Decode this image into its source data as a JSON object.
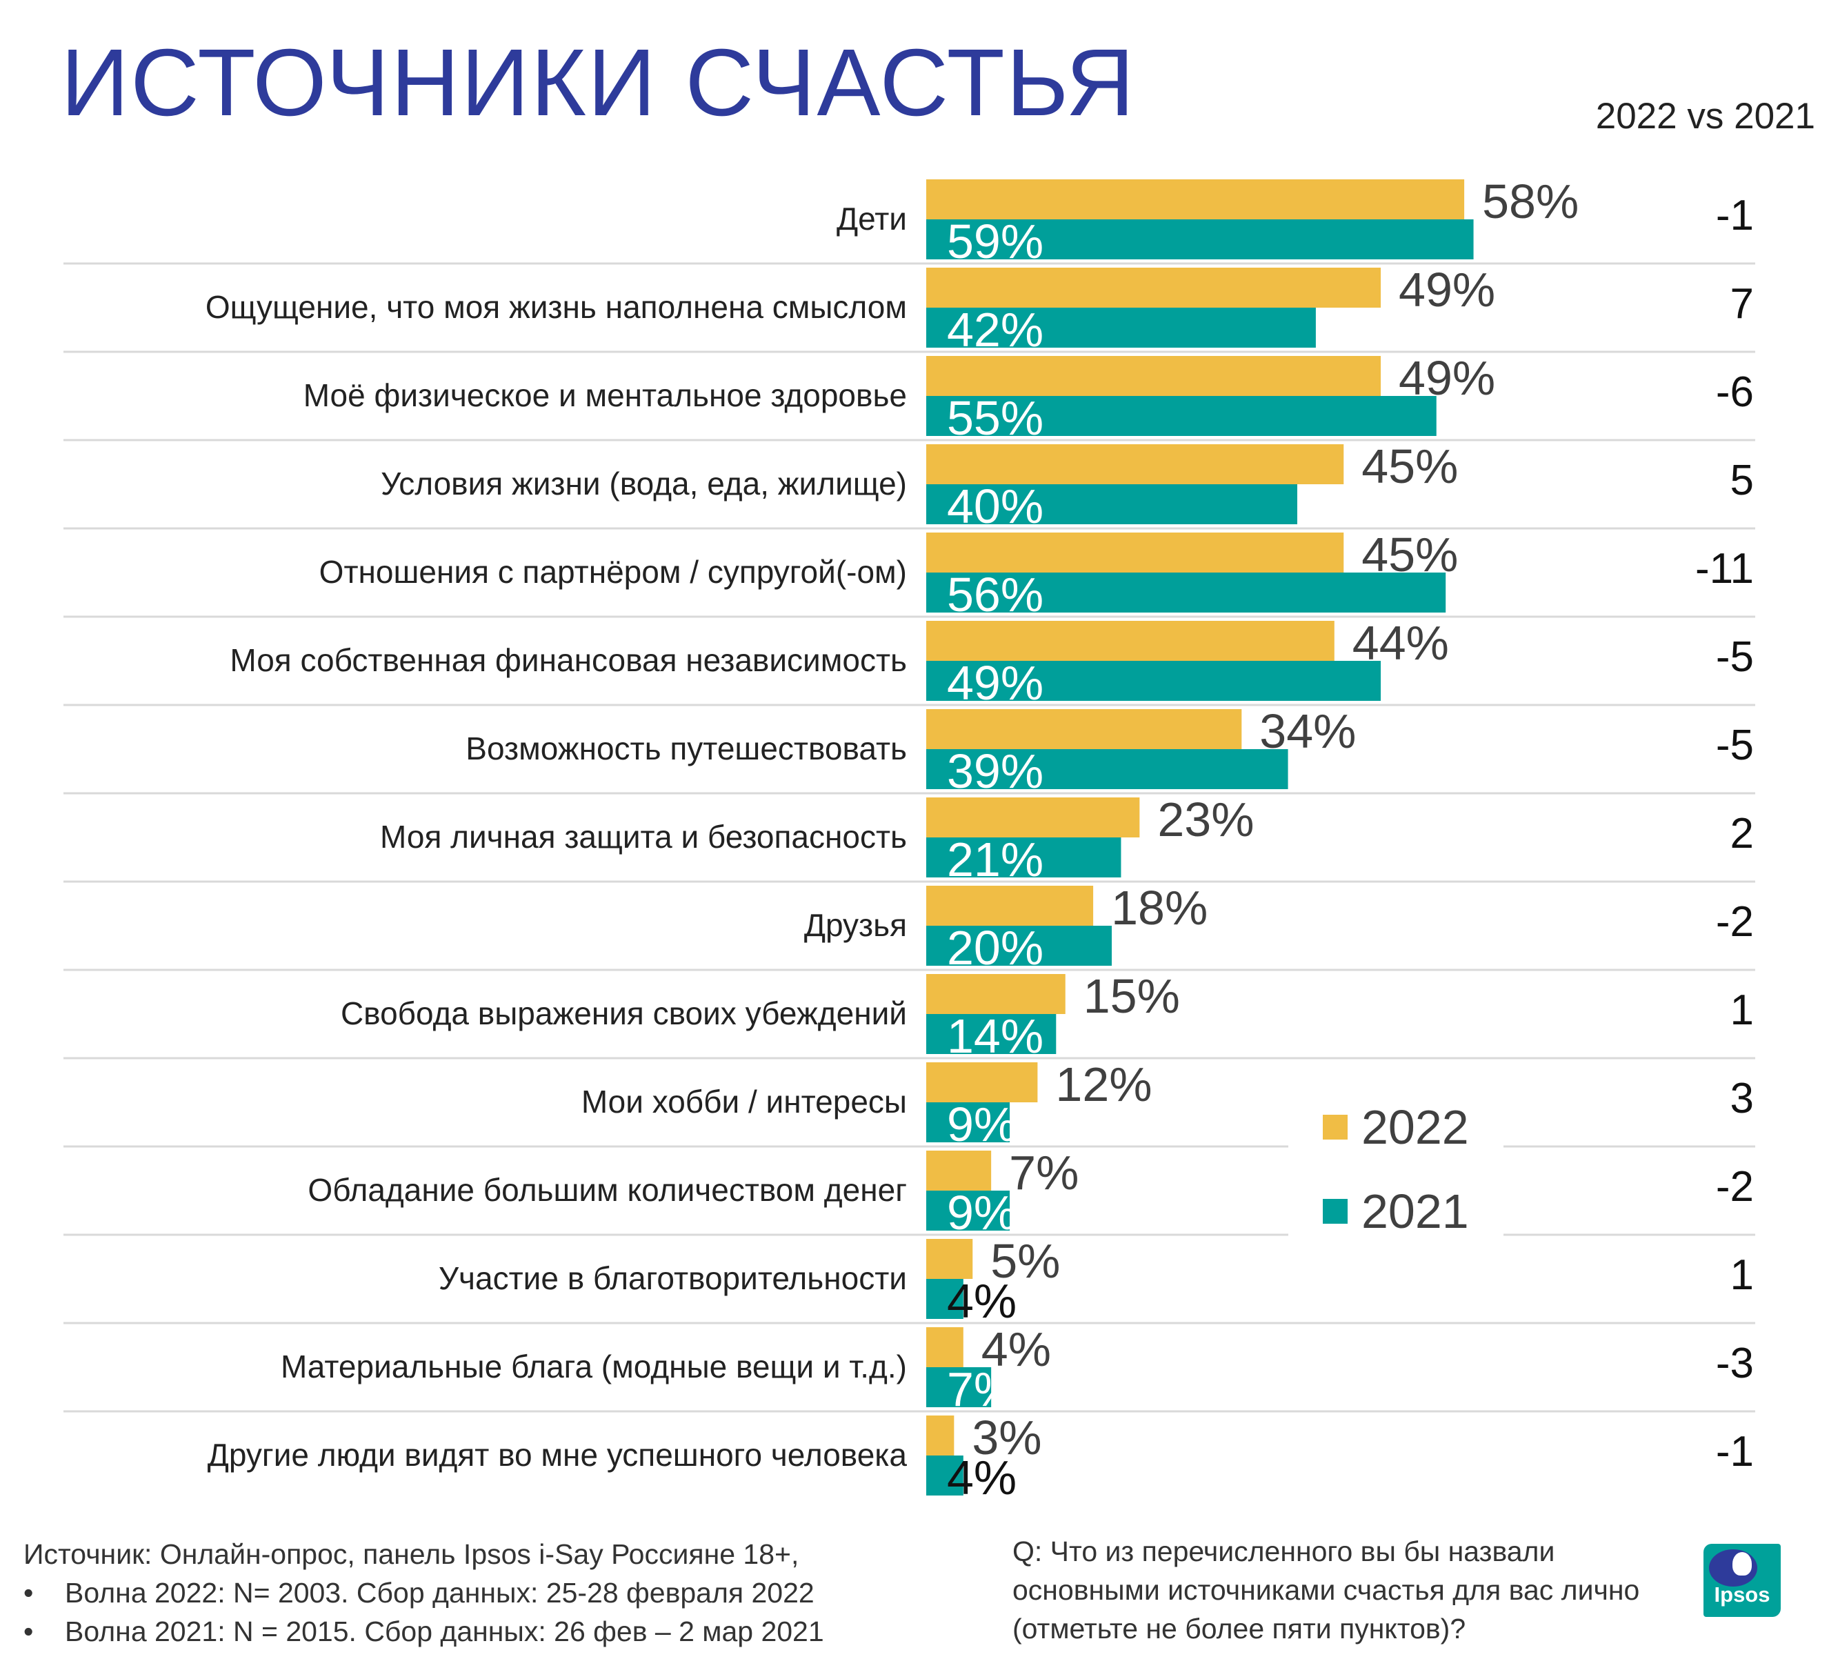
{
  "title": "ИСТОЧНИКИ СЧАСТЬЯ",
  "diff_header": "2022 vs 2021",
  "colors": {
    "series_2022": "#f0bd45",
    "series_2021": "#009f9a",
    "title": "#2e3b9b",
    "separator": "#d9d9d9"
  },
  "chart_data": {
    "type": "bar",
    "orientation": "horizontal",
    "categories": [
      "Дети",
      "Ощущение, что моя жизнь наполнена смыслом",
      "Моё физическое и ментальное здоровье",
      "Условия жизни (вода, еда, жилище)",
      "Отношения с партнёром / супругой(-ом)",
      "Моя собственная финансовая независимость",
      "Возможность путешествовать",
      "Моя личная защита и безопасность",
      "Друзья",
      "Свобода выражения своих убеждений",
      "Мои хобби / интересы",
      "Обладание большим количеством денег",
      "Участие в благотворительности",
      "Материальные блага (модные вещи и т.д.)",
      "Другие люди видят во мне успешного человека"
    ],
    "series": [
      {
        "name": "2022",
        "values": [
          58,
          49,
          49,
          45,
          45,
          44,
          34,
          23,
          18,
          15,
          12,
          7,
          5,
          4,
          3
        ]
      },
      {
        "name": "2021",
        "values": [
          59,
          42,
          55,
          40,
          56,
          49,
          39,
          21,
          20,
          14,
          9,
          9,
          4,
          7,
          4
        ]
      }
    ],
    "value_suffix": "%",
    "differences": [
      "-1",
      "7",
      "-6",
      "5",
      "-11",
      "-5",
      "-5",
      "2",
      "-2",
      "1",
      "3",
      "-2",
      "1",
      "-3",
      "-1"
    ],
    "xlim": [
      0,
      100
    ],
    "legend_position": "right"
  },
  "footer": {
    "source_intro": "Источник: Онлайн-опрос, панель Ipsos i-Say Россияне 18+,",
    "source_items": [
      "Волна 2022: N= 2003. Сбор данных: 25-28 февраля 2022",
      "Волна 2021: N = 2015. Сбор данных: 26 фев – 2 мар 2021"
    ],
    "question": "Q: Что из перечисленного вы бы назвали основными источниками счастья для вас лично (отметьте не более пяти пунктов)?"
  },
  "logo_text": "Ipsos"
}
